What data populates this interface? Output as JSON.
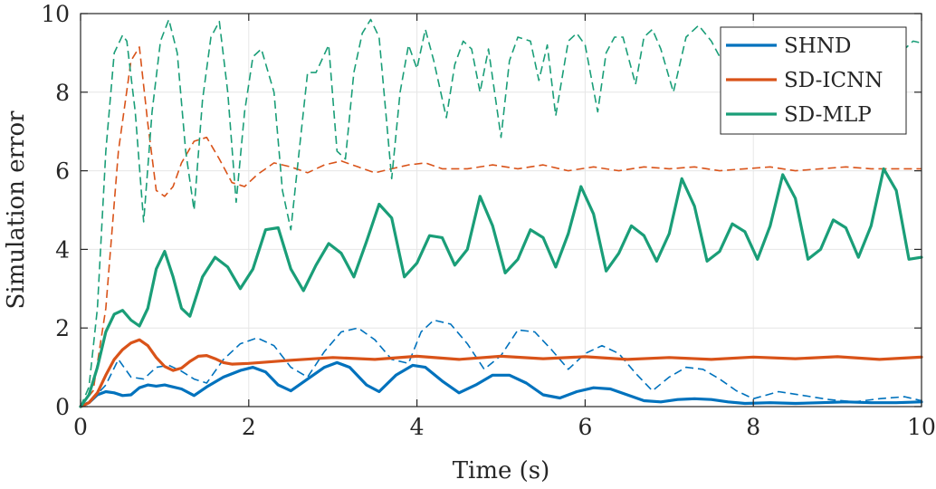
{
  "chart_data": {
    "type": "line",
    "xlabel": "Time (s)",
    "ylabel": "Simulation error",
    "xlim": [
      0,
      10
    ],
    "ylim": [
      0,
      10
    ],
    "xticks": [
      0,
      2,
      4,
      6,
      8,
      10
    ],
    "yticks": [
      0,
      2,
      4,
      6,
      8,
      10
    ],
    "grid": true,
    "legend_position": "top-right",
    "legend": [
      {
        "label": "SHND",
        "color": "#0072BD"
      },
      {
        "label": "SD-ICNN",
        "color": "#D95319"
      },
      {
        "label": "SD-MLP",
        "color": "#1A9E78"
      }
    ],
    "series": [
      {
        "name": "SHND",
        "style": "solid",
        "color": "#0072BD",
        "x": [
          0,
          0.1,
          0.2,
          0.3,
          0.4,
          0.5,
          0.6,
          0.7,
          0.8,
          0.9,
          1.0,
          1.1,
          1.2,
          1.35,
          1.5,
          1.7,
          1.9,
          2.05,
          2.2,
          2.35,
          2.5,
          2.7,
          2.9,
          3.05,
          3.2,
          3.4,
          3.55,
          3.75,
          3.95,
          4.1,
          4.3,
          4.5,
          4.7,
          4.9,
          5.1,
          5.3,
          5.5,
          5.7,
          5.9,
          6.1,
          6.3,
          6.5,
          6.7,
          6.9,
          7.1,
          7.3,
          7.5,
          7.7,
          7.9,
          8.2,
          8.5,
          8.8,
          9.1,
          9.4,
          9.7,
          10.0
        ],
        "y": [
          0,
          0.1,
          0.3,
          0.38,
          0.35,
          0.28,
          0.3,
          0.48,
          0.55,
          0.52,
          0.55,
          0.5,
          0.45,
          0.28,
          0.5,
          0.75,
          0.92,
          1.0,
          0.88,
          0.55,
          0.4,
          0.7,
          1.0,
          1.12,
          1.0,
          0.55,
          0.38,
          0.8,
          1.05,
          1.0,
          0.65,
          0.35,
          0.55,
          0.8,
          0.8,
          0.6,
          0.3,
          0.22,
          0.38,
          0.48,
          0.45,
          0.3,
          0.15,
          0.12,
          0.18,
          0.2,
          0.18,
          0.12,
          0.08,
          0.1,
          0.08,
          0.1,
          0.12,
          0.1,
          0.1,
          0.12
        ]
      },
      {
        "name": "SHND",
        "style": "dashed",
        "color": "#0072BD",
        "x": [
          0,
          0.15,
          0.3,
          0.45,
          0.6,
          0.75,
          0.9,
          1.05,
          1.2,
          1.35,
          1.5,
          1.7,
          1.9,
          2.1,
          2.3,
          2.5,
          2.7,
          2.9,
          3.1,
          3.3,
          3.5,
          3.7,
          3.9,
          4.05,
          4.2,
          4.4,
          4.6,
          4.8,
          5.0,
          5.2,
          5.4,
          5.6,
          5.8,
          6.0,
          6.2,
          6.4,
          6.6,
          6.8,
          7.0,
          7.2,
          7.4,
          7.6,
          7.8,
          8.0,
          8.3,
          8.6,
          8.9,
          9.2,
          9.5,
          9.8,
          10.0
        ],
        "y": [
          0,
          0.2,
          0.55,
          1.2,
          0.75,
          0.7,
          1.0,
          1.05,
          0.9,
          0.7,
          0.6,
          1.2,
          1.6,
          1.75,
          1.55,
          1.0,
          0.75,
          1.4,
          1.9,
          2.0,
          1.7,
          1.2,
          1.1,
          1.9,
          2.2,
          2.1,
          1.6,
          0.95,
          1.3,
          1.95,
          1.9,
          1.45,
          0.95,
          1.35,
          1.55,
          1.35,
          0.85,
          0.4,
          0.75,
          1.0,
          0.95,
          0.7,
          0.4,
          0.2,
          0.38,
          0.28,
          0.18,
          0.12,
          0.2,
          0.25,
          0.15
        ]
      },
      {
        "name": "SD-ICNN",
        "style": "solid",
        "color": "#D95319",
        "x": [
          0,
          0.1,
          0.2,
          0.3,
          0.4,
          0.5,
          0.6,
          0.7,
          0.8,
          0.9,
          1.0,
          1.1,
          1.2,
          1.3,
          1.4,
          1.5,
          1.6,
          1.7,
          1.8,
          2.0,
          2.5,
          3.0,
          3.5,
          4.0,
          4.5,
          5.0,
          5.5,
          6.0,
          6.5,
          7.0,
          7.5,
          8.0,
          8.5,
          9.0,
          9.5,
          10.0
        ],
        "y": [
          0,
          0.1,
          0.35,
          0.8,
          1.2,
          1.45,
          1.62,
          1.7,
          1.55,
          1.25,
          1.02,
          0.92,
          0.98,
          1.15,
          1.28,
          1.3,
          1.22,
          1.12,
          1.08,
          1.1,
          1.18,
          1.25,
          1.2,
          1.28,
          1.2,
          1.28,
          1.22,
          1.27,
          1.2,
          1.25,
          1.2,
          1.26,
          1.22,
          1.27,
          1.2,
          1.26
        ]
      },
      {
        "name": "SD-ICNN",
        "style": "dashed",
        "color": "#D95319",
        "x": [
          0,
          0.15,
          0.3,
          0.45,
          0.6,
          0.7,
          0.8,
          0.9,
          1.0,
          1.1,
          1.2,
          1.35,
          1.5,
          1.65,
          1.8,
          1.95,
          2.1,
          2.3,
          2.5,
          2.7,
          2.9,
          3.1,
          3.3,
          3.5,
          3.7,
          3.9,
          4.1,
          4.3,
          4.6,
          4.9,
          5.2,
          5.5,
          5.8,
          6.1,
          6.4,
          6.7,
          7.0,
          7.3,
          7.6,
          7.9,
          8.2,
          8.5,
          8.8,
          9.1,
          9.4,
          9.7,
          10.0
        ],
        "y": [
          0,
          0.4,
          2.5,
          6.5,
          8.8,
          9.15,
          7.2,
          5.5,
          5.35,
          5.6,
          6.2,
          6.75,
          6.85,
          6.3,
          5.7,
          5.6,
          5.9,
          6.2,
          6.1,
          5.95,
          6.15,
          6.25,
          6.1,
          5.95,
          6.05,
          6.15,
          6.2,
          6.05,
          6.05,
          6.15,
          6.05,
          6.15,
          6.0,
          6.1,
          6.0,
          6.1,
          6.05,
          6.1,
          6.0,
          6.05,
          6.1,
          6.0,
          6.05,
          6.1,
          6.05,
          6.05,
          6.05
        ]
      },
      {
        "name": "SD-MLP",
        "style": "solid",
        "color": "#1A9E78",
        "x": [
          0,
          0.1,
          0.2,
          0.3,
          0.4,
          0.5,
          0.6,
          0.7,
          0.8,
          0.9,
          1.0,
          1.1,
          1.2,
          1.3,
          1.45,
          1.6,
          1.75,
          1.9,
          2.05,
          2.2,
          2.35,
          2.5,
          2.65,
          2.8,
          2.95,
          3.1,
          3.25,
          3.4,
          3.55,
          3.7,
          3.85,
          4.0,
          4.15,
          4.3,
          4.45,
          4.6,
          4.75,
          4.9,
          5.05,
          5.2,
          5.35,
          5.5,
          5.65,
          5.8,
          5.95,
          6.1,
          6.25,
          6.4,
          6.55,
          6.7,
          6.85,
          7.0,
          7.15,
          7.3,
          7.45,
          7.6,
          7.75,
          7.9,
          8.05,
          8.2,
          8.35,
          8.5,
          8.65,
          8.8,
          8.95,
          9.1,
          9.25,
          9.4,
          9.55,
          9.7,
          9.85,
          10.0
        ],
        "y": [
          0,
          0.3,
          1.0,
          1.9,
          2.35,
          2.45,
          2.2,
          2.05,
          2.5,
          3.5,
          3.95,
          3.3,
          2.5,
          2.3,
          3.3,
          3.8,
          3.55,
          3.0,
          3.5,
          4.5,
          4.55,
          3.5,
          2.95,
          3.6,
          4.15,
          3.9,
          3.3,
          4.2,
          5.15,
          4.8,
          3.3,
          3.65,
          4.35,
          4.3,
          3.6,
          4.0,
          5.35,
          4.6,
          3.4,
          3.75,
          4.5,
          4.3,
          3.55,
          4.4,
          5.6,
          4.9,
          3.45,
          3.9,
          4.6,
          4.35,
          3.7,
          4.4,
          5.8,
          5.1,
          3.7,
          3.95,
          4.65,
          4.45,
          3.75,
          4.6,
          5.9,
          5.3,
          3.75,
          4.0,
          4.75,
          4.55,
          3.8,
          4.6,
          6.05,
          5.5,
          3.75,
          3.8
        ]
      },
      {
        "name": "SD-MLP",
        "style": "dashed",
        "color": "#1A9E78",
        "x": [
          0,
          0.1,
          0.2,
          0.3,
          0.4,
          0.5,
          0.55,
          0.65,
          0.75,
          0.85,
          0.95,
          1.05,
          1.15,
          1.25,
          1.35,
          1.45,
          1.55,
          1.65,
          1.75,
          1.85,
          1.95,
          2.05,
          2.15,
          2.3,
          2.4,
          2.5,
          2.6,
          2.7,
          2.8,
          2.95,
          3.05,
          3.15,
          3.25,
          3.35,
          3.45,
          3.55,
          3.7,
          3.8,
          3.9,
          4.0,
          4.1,
          4.2,
          4.35,
          4.45,
          4.55,
          4.65,
          4.75,
          4.85,
          5.0,
          5.1,
          5.2,
          5.35,
          5.45,
          5.55,
          5.65,
          5.8,
          5.9,
          6.0,
          6.15,
          6.25,
          6.35,
          6.45,
          6.6,
          6.7,
          6.8,
          6.9,
          7.05,
          7.2,
          7.35,
          7.5,
          7.65,
          7.8,
          7.95,
          8.1,
          8.25,
          8.4,
          8.55,
          8.7,
          8.85,
          9.0,
          9.15,
          9.3,
          9.45,
          9.6,
          9.75,
          9.9,
          10.0
        ],
        "y": [
          0,
          0.5,
          2.5,
          6.5,
          9.0,
          9.45,
          9.3,
          7.5,
          4.7,
          7.5,
          9.3,
          9.85,
          9.0,
          6.5,
          5.0,
          7.8,
          9.4,
          9.8,
          8.0,
          5.2,
          7.5,
          8.9,
          9.1,
          8.0,
          5.5,
          4.5,
          6.5,
          8.5,
          8.5,
          9.2,
          6.5,
          6.3,
          8.5,
          9.5,
          9.85,
          9.4,
          5.8,
          8.0,
          9.2,
          8.6,
          9.6,
          8.8,
          7.35,
          8.7,
          9.3,
          9.1,
          8.0,
          9.1,
          6.85,
          8.8,
          9.4,
          9.3,
          8.3,
          9.2,
          7.4,
          9.3,
          9.5,
          9.2,
          7.5,
          9.0,
          9.4,
          9.4,
          8.2,
          9.4,
          9.6,
          9.1,
          8.0,
          9.4,
          9.7,
          9.3,
          8.7,
          9.0,
          8.4,
          9.6,
          9.1,
          8.6,
          9.5,
          9.0,
          8.5,
          9.4,
          8.9,
          8.7,
          9.3,
          9.4,
          9.0,
          9.3,
          9.25
        ]
      }
    ]
  }
}
